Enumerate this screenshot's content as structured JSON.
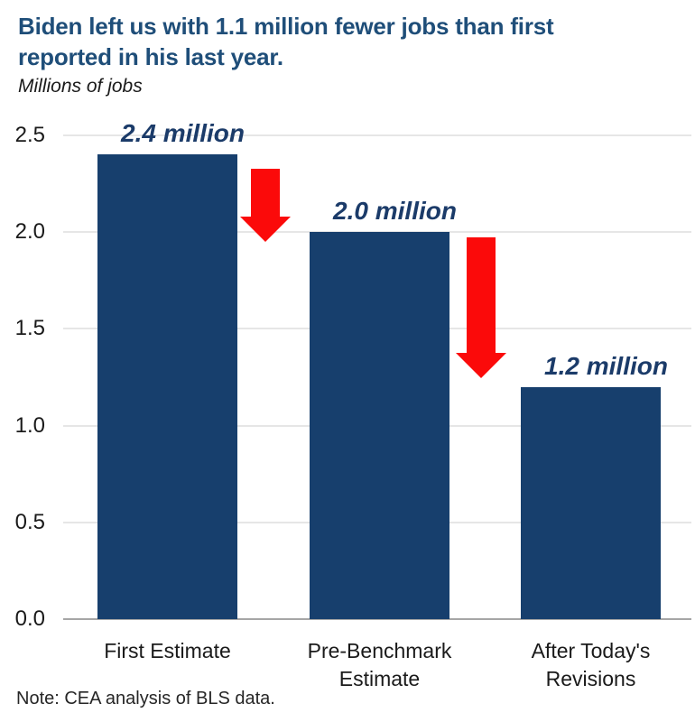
{
  "header": {
    "title": "Biden left us with 1.1 million fewer jobs than first reported in his last year.",
    "subtitle": "Millions of jobs"
  },
  "chart_data": {
    "type": "bar",
    "title": "Biden left us with 1.1 million fewer jobs than first reported in his last year.",
    "units_label": "Millions of jobs",
    "categories": [
      "First Estimate",
      "Pre-Benchmark Estimate",
      "After Today's Revisions"
    ],
    "values": [
      2.4,
      2.0,
      1.2
    ],
    "value_labels": [
      "2.4 million",
      "2.0 million",
      "1.2 million"
    ],
    "ylim": [
      0,
      2.5
    ],
    "ytick_labels": [
      "2.5",
      "2.0",
      "1.5",
      "1.0",
      "0.5",
      "0.0"
    ],
    "xlabel": "",
    "ylabel": "Millions of jobs",
    "grid": "horizontal",
    "legend": "none",
    "annotations": [
      {
        "type": "down-arrow",
        "from": "First Estimate",
        "to": "Pre-Benchmark Estimate"
      },
      {
        "type": "down-arrow",
        "from": "Pre-Benchmark Estimate",
        "to": "After Today's Revisions"
      }
    ],
    "note": "Note: CEA analysis of BLS data."
  },
  "colors": {
    "title_text": "#1F4E79",
    "subtitle_text": "#1A1A1A",
    "bar_fill": "#173F6D",
    "value_label_text": "#1B3B69",
    "arrow_fill": "#FB0A0A",
    "gridline": "#E6E6E6",
    "axis_line": "#A6A6A6",
    "tick_text": "#1A1A1A",
    "category_text": "#1A1A1A",
    "note_text": "#262626",
    "background": "#FFFFFF"
  }
}
